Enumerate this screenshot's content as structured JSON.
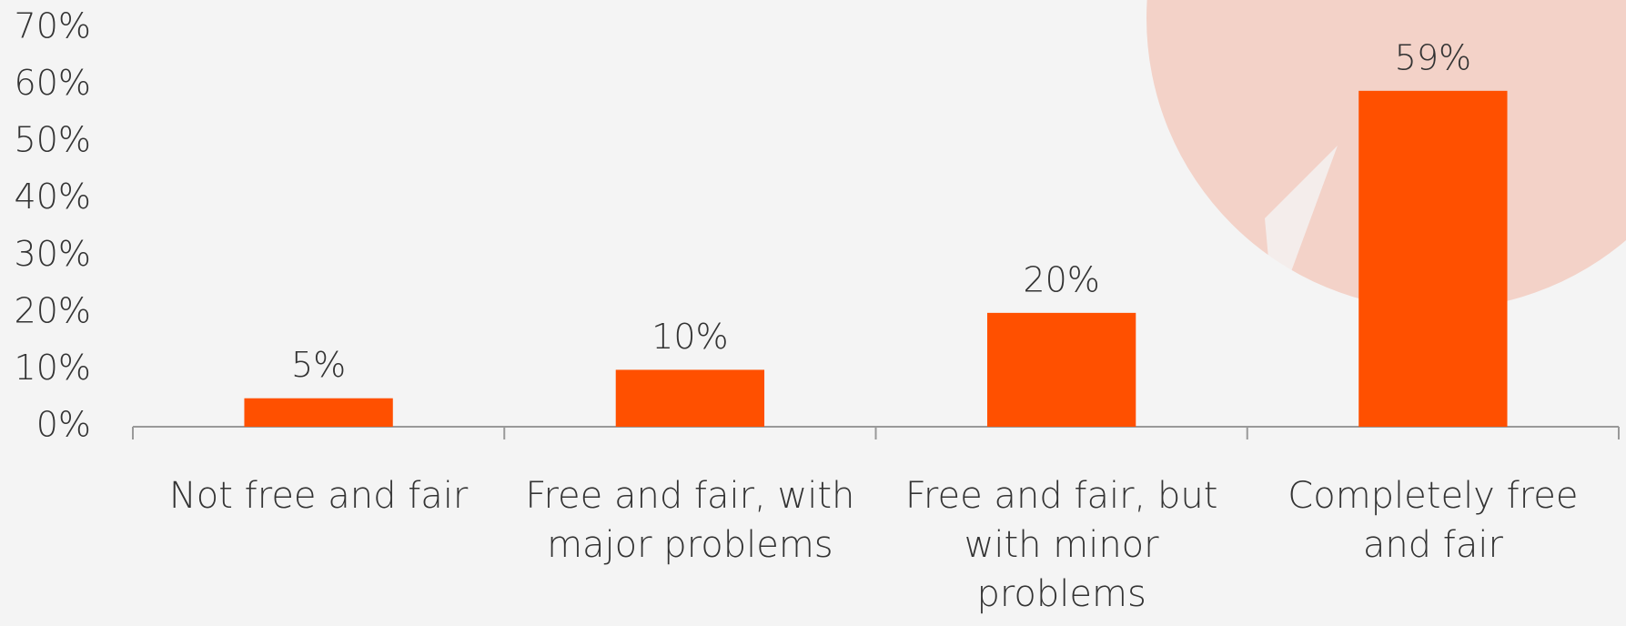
{
  "chart_data": {
    "type": "bar",
    "categories": [
      "Not free and fair",
      "Free and fair, with major problems",
      "Free and fair, but with minor problems",
      "Completely free and fair"
    ],
    "values": [
      5,
      10,
      20,
      59
    ],
    "value_labels": [
      "5%",
      "10%",
      "20%",
      "59%"
    ],
    "color": "#ff5000",
    "ylim": [
      0,
      70
    ],
    "yticks": [
      {
        "value": 0,
        "label": "0%"
      },
      {
        "value": 10,
        "label": "10%"
      },
      {
        "value": 20,
        "label": "20%"
      },
      {
        "value": 30,
        "label": "30%"
      },
      {
        "value": 40,
        "label": "40%"
      },
      {
        "value": 50,
        "label": "50%"
      },
      {
        "value": 60,
        "label": "60%"
      },
      {
        "value": 70,
        "label": "70%"
      }
    ],
    "grid": false
  }
}
